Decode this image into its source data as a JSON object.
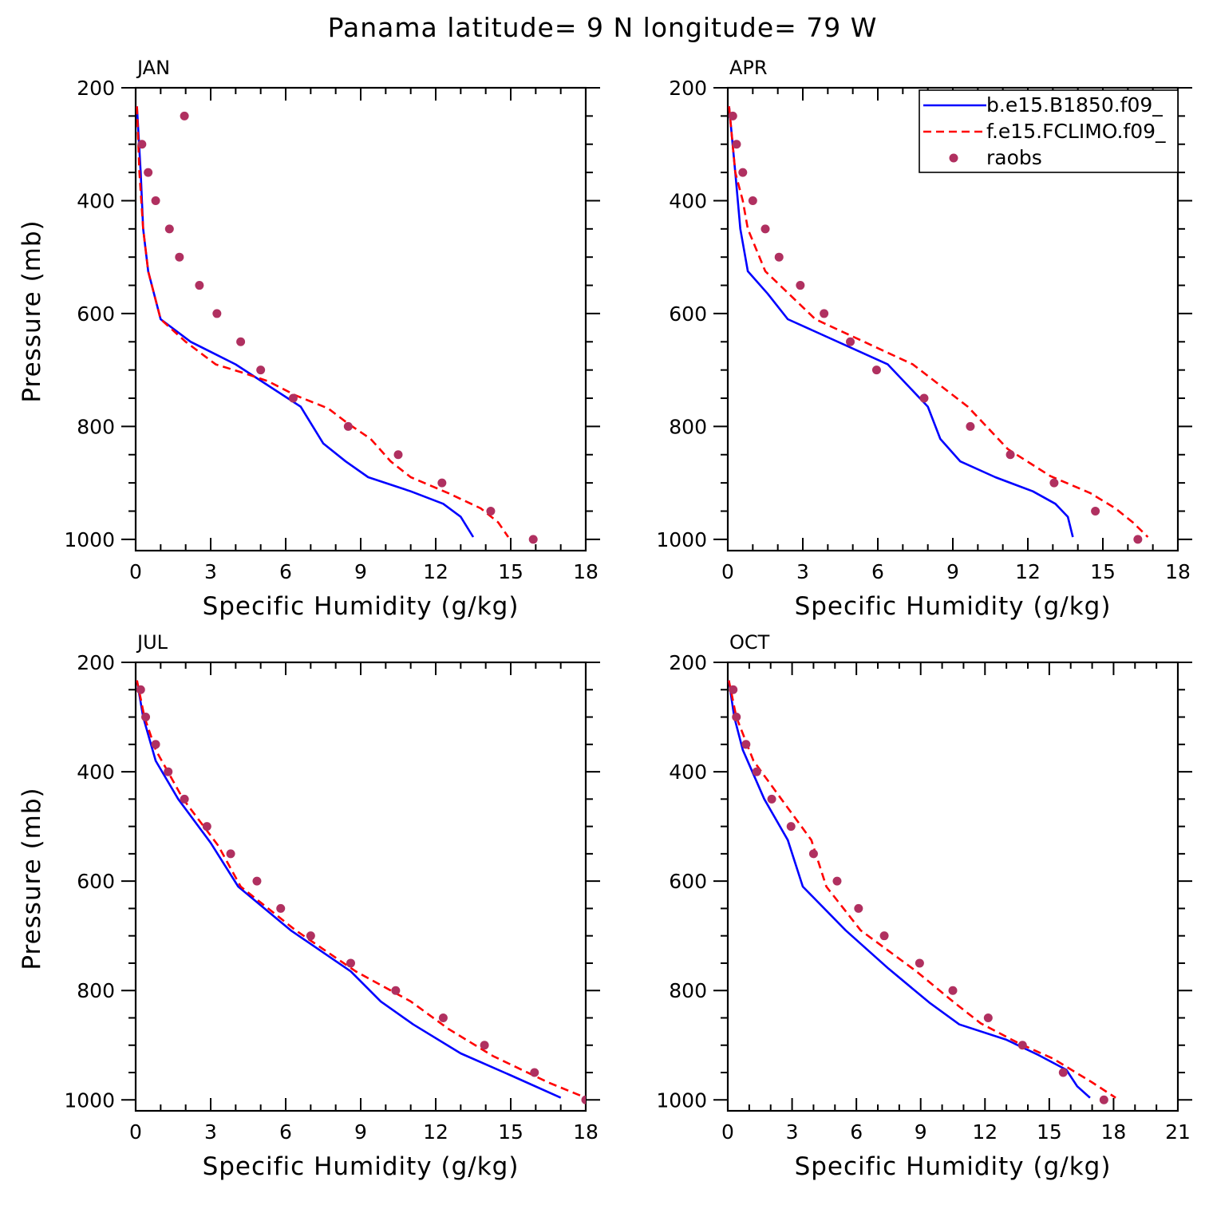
{
  "figure": {
    "title": "Panama  latitude= 9 N longitude= 79 W"
  },
  "colors": {
    "series1": "#0000ff",
    "series2": "#ff0000",
    "series3": "#b03060"
  },
  "chart_data": [
    {
      "type": "line",
      "panel": "JAN",
      "title": "JAN",
      "xlabel": "Specific Humidity (g/kg)",
      "ylabel": "Pressure (mb)",
      "xlim": [
        0,
        18
      ],
      "ylim": [
        200,
        1020
      ],
      "y_inverted": true,
      "xticks": [
        0,
        3,
        6,
        9,
        12,
        15,
        18
      ],
      "yticks": [
        200,
        400,
        600,
        800,
        1000
      ],
      "series": [
        {
          "name": "b.e15.B1850.f09_",
          "style": "solid",
          "x": [
            0.05,
            0.2,
            0.3,
            0.5,
            1.0,
            2.2,
            4.0,
            6.6,
            7.5,
            8.4,
            9.3,
            11.0,
            12.3,
            13.0,
            13.5
          ],
          "y": [
            233,
            350,
            450,
            525,
            610,
            650,
            690,
            765,
            830,
            862,
            890,
            915,
            937,
            960,
            996
          ]
        },
        {
          "name": "f.e15.FCLIMO.f09_",
          "style": "dashed",
          "x": [
            0.05,
            0.15,
            0.3,
            0.5,
            1.0,
            2.0,
            3.2,
            4.3,
            5.3,
            6.4,
            7.7,
            8.5,
            9.4,
            10.2,
            11.0,
            12.5,
            13.8,
            14.5,
            14.9
          ],
          "y": [
            233,
            350,
            450,
            525,
            610,
            650,
            690,
            705,
            720,
            745,
            768,
            795,
            822,
            862,
            890,
            918,
            945,
            970,
            996
          ]
        },
        {
          "name": "raobs",
          "style": "points",
          "x": [
            1.95,
            0.25,
            0.5,
            0.8,
            1.35,
            1.75,
            2.55,
            3.25,
            4.2,
            5.0,
            6.3,
            8.5,
            10.5,
            12.25,
            14.2,
            15.9
          ],
          "y": [
            250,
            300,
            350,
            400,
            450,
            500,
            550,
            600,
            650,
            700,
            750,
            800,
            850,
            900,
            950,
            1000
          ]
        }
      ]
    },
    {
      "type": "line",
      "panel": "APR",
      "title": "APR",
      "xlabel": "Specific Humidity (g/kg)",
      "ylabel": "",
      "xlim": [
        0,
        18
      ],
      "ylim": [
        200,
        1020
      ],
      "y_inverted": true,
      "xticks": [
        0,
        3,
        6,
        9,
        12,
        15,
        18
      ],
      "yticks": [
        200,
        400,
        600,
        800,
        1000
      ],
      "series": [
        {
          "name": "b.e15.B1850.f09_",
          "style": "solid",
          "x": [
            0.05,
            0.3,
            0.5,
            0.8,
            1.6,
            2.4,
            6.4,
            8.0,
            8.5,
            9.3,
            10.7,
            12.2,
            13.1,
            13.6,
            13.8
          ],
          "y": [
            233,
            350,
            450,
            525,
            565,
            610,
            690,
            765,
            822,
            862,
            890,
            915,
            937,
            960,
            996
          ]
        },
        {
          "name": "f.e15.FCLIMO.f09_",
          "style": "dashed",
          "x": [
            0.05,
            0.3,
            0.6,
            0.8,
            1.5,
            3.5,
            7.4,
            9.6,
            11.2,
            12.9,
            14.5,
            15.5,
            16.2,
            16.8
          ],
          "y": [
            233,
            350,
            400,
            450,
            525,
            610,
            690,
            765,
            840,
            888,
            918,
            945,
            970,
            996
          ]
        },
        {
          "name": "raobs",
          "style": "points",
          "x": [
            0.2,
            0.35,
            0.6,
            1.0,
            1.5,
            2.05,
            2.9,
            3.85,
            4.9,
            5.95,
            7.85,
            9.7,
            11.3,
            13.05,
            14.7,
            16.4
          ],
          "y": [
            250,
            300,
            350,
            400,
            450,
            500,
            550,
            600,
            650,
            700,
            750,
            800,
            850,
            900,
            950,
            1000
          ]
        }
      ],
      "legend": {
        "position": "top-right",
        "entries": [
          "b.e15.B1850.f09_",
          "f.e15.FCLIMO.f09_",
          "raobs"
        ]
      }
    },
    {
      "type": "line",
      "panel": "JUL",
      "title": "JUL",
      "xlabel": "Specific Humidity (g/kg)",
      "ylabel": "Pressure (mb)",
      "xlim": [
        0,
        18
      ],
      "ylim": [
        200,
        1020
      ],
      "y_inverted": true,
      "xticks": [
        0,
        3,
        6,
        9,
        12,
        15,
        18
      ],
      "yticks": [
        200,
        400,
        600,
        800,
        1000
      ],
      "series": [
        {
          "name": "b.e15.B1850.f09_",
          "style": "solid",
          "x": [
            0.05,
            0.3,
            0.8,
            1.7,
            3.0,
            4.1,
            6.2,
            8.6,
            9.8,
            11.1,
            13.0,
            15.0,
            17.0
          ],
          "y": [
            233,
            300,
            380,
            450,
            530,
            610,
            690,
            765,
            820,
            862,
            915,
            955,
            996
          ]
        },
        {
          "name": "f.e15.FCLIMO.f09_",
          "style": "dashed",
          "x": [
            0.05,
            0.35,
            0.8,
            1.9,
            3.3,
            4.2,
            6.4,
            8.8,
            11.0,
            12.5,
            14.3,
            16.5,
            18.0
          ],
          "y": [
            233,
            300,
            360,
            450,
            535,
            610,
            690,
            765,
            820,
            870,
            920,
            968,
            996
          ]
        },
        {
          "name": "raobs",
          "style": "points",
          "x": [
            0.2,
            0.4,
            0.8,
            1.3,
            1.95,
            2.85,
            3.8,
            4.85,
            5.8,
            7.0,
            8.6,
            10.4,
            12.3,
            13.95,
            15.95,
            18.0
          ],
          "y": [
            250,
            300,
            350,
            400,
            450,
            500,
            550,
            600,
            650,
            700,
            750,
            800,
            850,
            900,
            950,
            1000
          ]
        }
      ]
    },
    {
      "type": "line",
      "panel": "OCT",
      "title": "OCT",
      "xlabel": "Specific Humidity (g/kg)",
      "ylabel": "",
      "xlim": [
        0,
        21
      ],
      "ylim": [
        200,
        1020
      ],
      "y_inverted": true,
      "xticks": [
        0,
        3,
        6,
        9,
        12,
        15,
        18,
        21
      ],
      "yticks": [
        200,
        400,
        600,
        800,
        1000
      ],
      "series": [
        {
          "name": "b.e15.B1850.f09_",
          "style": "solid",
          "x": [
            0.05,
            0.3,
            0.7,
            1.7,
            2.8,
            3.5,
            5.5,
            7.5,
            9.4,
            10.8,
            13.0,
            14.5,
            15.8,
            16.3,
            16.9
          ],
          "y": [
            233,
            300,
            360,
            450,
            525,
            610,
            690,
            760,
            822,
            862,
            890,
            918,
            945,
            975,
            996
          ]
        },
        {
          "name": "f.e15.FCLIMO.f09_",
          "style": "dashed",
          "x": [
            0.05,
            0.4,
            1.2,
            2.5,
            3.9,
            4.6,
            6.2,
            8.8,
            10.5,
            11.8,
            13.5,
            15.2,
            17.0,
            18.1
          ],
          "y": [
            233,
            300,
            380,
            450,
            525,
            610,
            690,
            765,
            820,
            860,
            895,
            925,
            968,
            996
          ]
        },
        {
          "name": "raobs",
          "style": "points",
          "x": [
            0.25,
            0.4,
            0.85,
            1.35,
            2.05,
            2.95,
            4.0,
            5.1,
            6.1,
            7.3,
            8.95,
            10.5,
            12.15,
            13.75,
            15.65,
            17.55
          ],
          "y": [
            250,
            300,
            350,
            400,
            450,
            500,
            550,
            600,
            650,
            700,
            750,
            800,
            850,
            900,
            950,
            1000
          ]
        }
      ]
    }
  ]
}
